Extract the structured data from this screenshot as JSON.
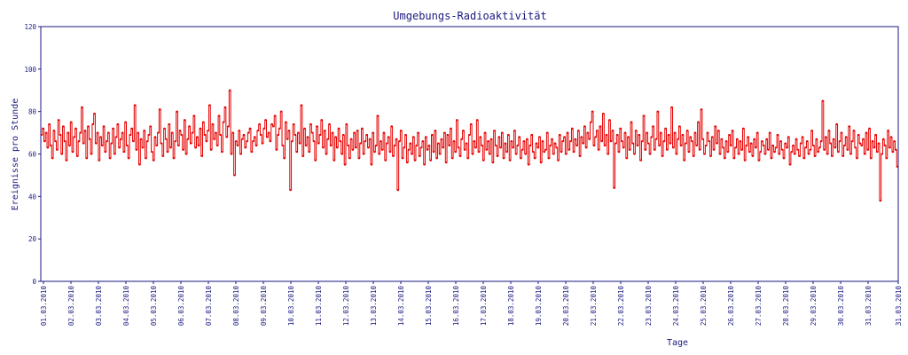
{
  "chart_data": {
    "type": "line",
    "title": "Umgebungs-Radioaktivität",
    "xlabel": "Tage",
    "ylabel": "Ereignisse pro Stunde",
    "ylim": [
      0,
      120
    ],
    "yticks": [
      "0",
      "20",
      "40",
      "60",
      "80",
      "100",
      "120"
    ],
    "xticks": [
      "01.03.2010",
      "02.03.2010",
      "03.03.2010",
      "04.03.2010",
      "05.03.2010",
      "06.03.2010",
      "07.03.2010",
      "08.03.2010",
      "09.03.2010",
      "10.03.2010",
      "11.03.2010",
      "12.03.2010",
      "13.03.2010",
      "14.03.2010",
      "15.03.2010",
      "16.03.2010",
      "17.03.2010",
      "18.03.2010",
      "19.03.2010",
      "20.03.2010",
      "21.03.2010",
      "22.03.2010",
      "23.03.2010",
      "24.03.2010",
      "25.03.2010",
      "26.03.2010",
      "27.03.2010",
      "28.03.2010",
      "29.03.2010",
      "30.03.2010",
      "31.03.2010",
      "31.03.2010"
    ],
    "grid": false,
    "line_color": "#e60000",
    "axis_color": "#1a1a80",
    "series": [
      {
        "values": [
          69,
          72,
          66,
          70,
          63,
          74,
          64,
          58,
          71,
          66,
          62,
          76,
          69,
          60,
          73,
          66,
          57,
          70,
          64,
          75,
          61,
          68,
          72,
          59,
          66,
          70,
          82,
          65,
          71,
          58,
          73,
          67,
          60,
          74,
          79,
          65,
          70,
          57,
          68,
          64,
          73,
          61,
          66,
          70,
          58,
          65,
          72,
          60,
          68,
          74,
          63,
          67,
          70,
          61,
          75,
          64,
          58,
          69,
          72,
          66,
          83,
          62,
          70,
          55,
          67,
          63,
          71,
          58,
          66,
          69,
          73,
          61,
          57,
          68,
          64,
          70,
          81,
          65,
          59,
          72,
          67,
          61,
          74,
          63,
          70,
          58,
          66,
          80,
          64,
          71,
          69,
          62,
          76,
          60,
          67,
          73,
          65,
          70,
          78,
          63,
          68,
          64,
          72,
          59,
          75,
          69,
          66,
          71,
          83,
          62,
          74,
          67,
          70,
          64,
          78,
          69,
          61,
          75,
          82,
          68,
          73,
          90,
          60,
          70,
          50,
          66,
          64,
          71,
          60,
          67,
          69,
          63,
          66,
          70,
          72,
          61,
          66,
          68,
          64,
          71,
          74,
          69,
          65,
          72,
          76,
          68,
          70,
          66,
          74,
          73,
          78,
          62,
          69,
          72,
          80,
          64,
          58,
          75,
          67,
          71,
          43,
          66,
          74,
          69,
          61,
          70,
          65,
          83,
          59,
          72,
          64,
          68,
          61,
          74,
          70,
          66,
          57,
          73,
          65,
          69,
          76,
          63,
          71,
          60,
          67,
          74,
          64,
          70,
          57,
          68,
          63,
          72,
          66,
          60,
          69,
          55,
          74,
          64,
          58,
          67,
          62,
          70,
          63,
          71,
          58,
          65,
          72,
          60,
          66,
          69,
          63,
          67,
          55,
          70,
          61,
          64,
          78,
          60,
          66,
          62,
          70,
          57,
          65,
          68,
          61,
          73,
          59,
          64,
          67,
          43,
          66,
          71,
          58,
          63,
          69,
          56,
          62,
          65,
          60,
          68,
          57,
          64,
          70,
          59,
          63,
          66,
          55,
          68,
          62,
          64,
          57,
          69,
          61,
          71,
          58,
          65,
          60,
          67,
          63,
          70,
          56,
          69,
          64,
          72,
          58,
          66,
          61,
          76,
          63,
          59,
          67,
          71,
          62,
          65,
          58,
          69,
          74,
          60,
          66,
          63,
          76,
          61,
          68,
          64,
          57,
          70,
          62,
          66,
          60,
          67,
          56,
          71,
          64,
          59,
          68,
          63,
          70,
          58,
          65,
          61,
          69,
          57,
          66,
          63,
          71,
          60,
          64,
          68,
          58,
          62,
          66,
          60,
          67,
          55,
          64,
          69,
          61,
          58,
          65,
          63,
          68,
          56,
          66,
          61,
          62,
          70,
          58,
          64,
          67,
          60,
          65,
          63,
          57,
          69,
          61,
          66,
          68,
          60,
          70,
          62,
          66,
          72,
          61,
          67,
          64,
          71,
          59,
          68,
          65,
          73,
          63,
          70,
          67,
          75,
          80,
          64,
          68,
          71,
          62,
          73,
          66,
          79,
          64,
          69,
          60,
          76,
          66,
          71,
          44,
          65,
          69,
          61,
          72,
          66,
          63,
          70,
          58,
          68,
          62,
          75,
          65,
          60,
          71,
          64,
          69,
          57,
          66,
          78,
          62,
          70,
          65,
          60,
          68,
          73,
          62,
          67,
          80,
          64,
          70,
          59,
          66,
          72,
          62,
          69,
          65,
          82,
          63,
          70,
          60,
          67,
          73,
          64,
          69,
          57,
          65,
          71,
          61,
          68,
          66,
          59,
          70,
          64,
          75,
          62,
          81,
          67,
          60,
          64,
          70,
          66,
          59,
          68,
          62,
          73,
          65,
          71,
          60,
          67,
          63,
          58,
          66,
          61,
          69,
          64,
          71,
          58,
          63,
          67,
          60,
          66,
          62,
          72,
          57,
          64,
          68,
          61,
          65,
          59,
          67,
          63,
          70,
          57,
          61,
          66,
          64,
          60,
          67,
          62,
          70,
          58,
          64,
          61,
          63,
          69,
          60,
          66,
          62,
          58,
          65,
          63,
          68,
          55,
          61,
          64,
          60,
          67,
          62,
          59,
          65,
          68,
          58,
          63,
          66,
          60,
          62,
          71,
          64,
          59,
          67,
          61,
          63,
          66,
          85,
          62,
          68,
          60,
          71,
          65,
          59,
          67,
          63,
          74,
          61,
          66,
          70,
          59,
          64,
          68,
          62,
          73,
          60,
          66,
          71,
          63,
          58,
          69,
          65,
          64,
          67,
          60,
          70,
          62,
          72,
          58,
          66,
          63,
          69,
          61,
          65,
          38,
          60,
          67,
          64,
          58,
          71,
          63,
          68,
          61,
          66,
          62,
          54
        ]
      }
    ]
  }
}
